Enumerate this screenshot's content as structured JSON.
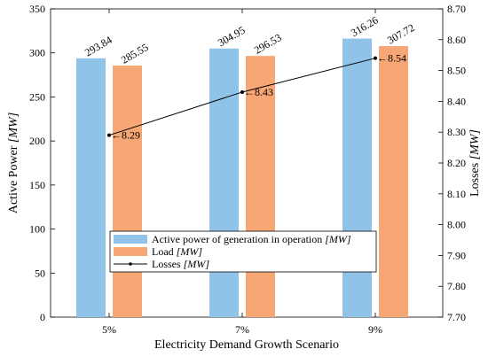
{
  "chart_data": {
    "type": "bar",
    "categories": [
      "5%",
      "7%",
      "9%"
    ],
    "series": [
      {
        "name": "Active power of generation in operation [MW]",
        "values": [
          293.84,
          304.95,
          316.26
        ],
        "labels": [
          "293.84",
          "304.95",
          "316.26"
        ],
        "color": "#8fc3e8",
        "axis": "left"
      },
      {
        "name": "Load [MW]",
        "values": [
          285.55,
          296.53,
          307.72
        ],
        "labels": [
          "285.55",
          "296.53",
          "307.72"
        ],
        "color": "#f6a775",
        "axis": "left"
      }
    ],
    "line_series": {
      "name": "Losses [MW]",
      "type": "line",
      "values": [
        8.29,
        8.43,
        8.54
      ],
      "labels": [
        "←8.29",
        "←8.43",
        "←8.54"
      ],
      "color": "#000000",
      "axis": "right"
    },
    "xlabel": "Electricity Demand Growth Scenario",
    "ylabel_left": "Active Power [MW]",
    "ylabel_right": "Losses [MW]",
    "ylim_left": [
      0,
      350
    ],
    "ylim_right": [
      7.7,
      8.7
    ],
    "yticks_left": [
      "0",
      "50",
      "100",
      "150",
      "200",
      "250",
      "300",
      "350"
    ],
    "yticks_right": [
      "7.70",
      "7.80",
      "7.90",
      "8.00",
      "8.10",
      "8.20",
      "8.30",
      "8.40",
      "8.50",
      "8.60",
      "8.70"
    ],
    "grid": false,
    "legend_position": "bottom-center"
  }
}
